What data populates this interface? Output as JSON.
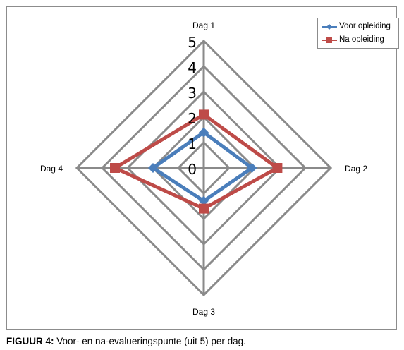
{
  "chart_data": {
    "type": "radar",
    "categories": [
      "Dag 1",
      "Dag 2",
      "Dag 3",
      "Dag 4"
    ],
    "rlim": [
      0,
      5
    ],
    "ticks": [
      0,
      1,
      2,
      3,
      4,
      5
    ],
    "tick_labels": [
      "0",
      "1",
      "2",
      "3",
      "4",
      "5"
    ],
    "grid": true,
    "legend_position": "top-right",
    "series": [
      {
        "name": "Voor opleiding",
        "values": [
          1.4,
          1.9,
          1.3,
          2.0
        ],
        "color": "#4a7ebb",
        "marker": "diamond"
      },
      {
        "name": "Na opleiding",
        "values": [
          2.1,
          2.9,
          1.6,
          3.5
        ],
        "color": "#be4b48",
        "marker": "square"
      }
    ]
  },
  "caption": {
    "lead": "FIGUUR 4:",
    "text": " Voor- en na-evalueringspunte (uit 5) per dag."
  }
}
